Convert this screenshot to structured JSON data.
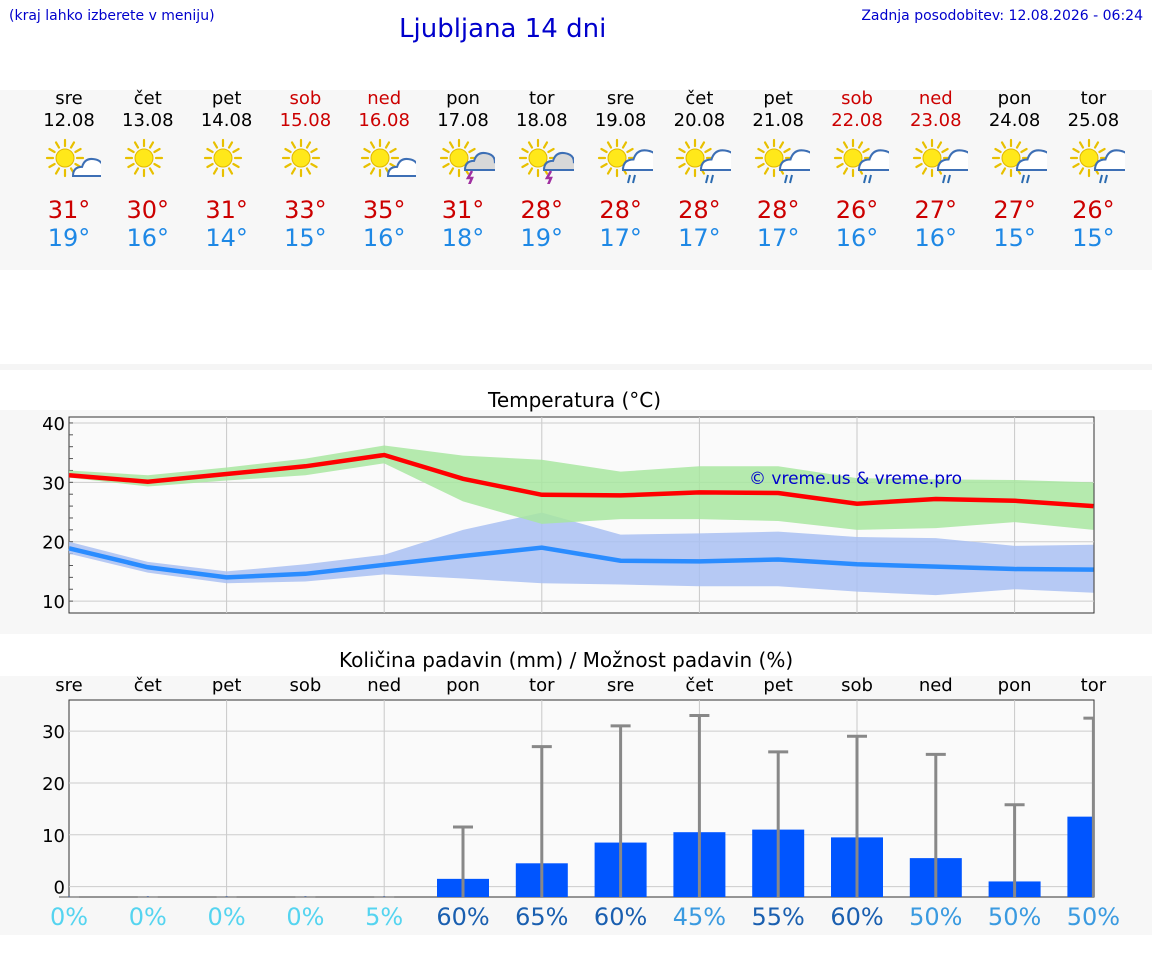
{
  "header": {
    "hint": "(kraj lahko izberete v meniju)",
    "title": "Ljubljana 14 dni",
    "updated_label": "Zadnja posodobitev:",
    "updated_value": "12.08.2026 - 06:24"
  },
  "colors": {
    "weekday": "#000000",
    "weekend": "#cc0000",
    "tmax": "#cc0000",
    "tmin": "#1e88e5",
    "max_band": "#a8e6a0",
    "min_band": "#a9c0f2",
    "max_line": "#ff0000",
    "min_line": "#2a8cff",
    "bar": "#0055ff",
    "whisker": "#888888",
    "pct_low": "#55d4f0",
    "pct_mid": "#3a9ae0",
    "pct_high": "#1a5fb0"
  },
  "days": [
    {
      "name": "sre",
      "date": "12.08",
      "weekend": false,
      "icon": "sun-cloud-icon",
      "tmax": "31°",
      "tmin": "19°"
    },
    {
      "name": "čet",
      "date": "13.08",
      "weekend": false,
      "icon": "sun-icon",
      "tmax": "30°",
      "tmin": "16°"
    },
    {
      "name": "pet",
      "date": "14.08",
      "weekend": false,
      "icon": "sun-icon",
      "tmax": "31°",
      "tmin": "14°"
    },
    {
      "name": "sob",
      "date": "15.08",
      "weekend": true,
      "icon": "sun-icon",
      "tmax": "33°",
      "tmin": "15°"
    },
    {
      "name": "ned",
      "date": "16.08",
      "weekend": true,
      "icon": "sun-cloud-icon",
      "tmax": "35°",
      "tmin": "16°"
    },
    {
      "name": "pon",
      "date": "17.08",
      "weekend": false,
      "icon": "sun-storm-icon",
      "tmax": "31°",
      "tmin": "18°"
    },
    {
      "name": "tor",
      "date": "18.08",
      "weekend": false,
      "icon": "sun-storm-icon",
      "tmax": "28°",
      "tmin": "19°"
    },
    {
      "name": "sre",
      "date": "19.08",
      "weekend": false,
      "icon": "sun-rain-icon",
      "tmax": "28°",
      "tmin": "17°"
    },
    {
      "name": "čet",
      "date": "20.08",
      "weekend": false,
      "icon": "sun-rain-icon",
      "tmax": "28°",
      "tmin": "17°"
    },
    {
      "name": "pet",
      "date": "21.08",
      "weekend": false,
      "icon": "sun-rain-icon",
      "tmax": "28°",
      "tmin": "17°"
    },
    {
      "name": "sob",
      "date": "22.08",
      "weekend": true,
      "icon": "sun-rain-icon",
      "tmax": "26°",
      "tmin": "16°"
    },
    {
      "name": "ned",
      "date": "23.08",
      "weekend": true,
      "icon": "sun-rain-icon",
      "tmax": "27°",
      "tmin": "16°"
    },
    {
      "name": "pon",
      "date": "24.08",
      "weekend": false,
      "icon": "sun-rain-icon",
      "tmax": "27°",
      "tmin": "15°"
    },
    {
      "name": "tor",
      "date": "25.08",
      "weekend": false,
      "icon": "sun-rain-icon",
      "tmax": "26°",
      "tmin": "15°"
    }
  ],
  "chart_data": [
    {
      "type": "line",
      "title": "Temperatura (°C)",
      "watermark": "© vreme.us & vreme.pro",
      "ylim": [
        8,
        41
      ],
      "yticks": [
        10,
        20,
        30,
        40
      ],
      "grid": true,
      "series": [
        {
          "values": [
            31.2,
            30.1,
            31.4,
            32.7,
            34.6,
            30.6,
            27.9,
            27.8,
            28.3,
            28.2,
            26.4,
            27.2,
            26.9,
            26.0
          ],
          "band_low": [
            30.8,
            29.3,
            30.3,
            31.2,
            33.2,
            26.8,
            23.0,
            23.8,
            23.8,
            23.5,
            22.0,
            22.3,
            23.3,
            22.0
          ],
          "band_high": [
            32.0,
            31.2,
            32.5,
            34.0,
            36.2,
            34.5,
            33.8,
            31.8,
            32.7,
            32.7,
            30.7,
            30.5,
            30.4,
            30.0
          ]
        },
        {
          "values": [
            18.9,
            15.7,
            14.0,
            14.6,
            16.1,
            17.6,
            19.0,
            16.8,
            16.7,
            17.0,
            16.2,
            15.8,
            15.4,
            15.3
          ],
          "band_low": [
            18.0,
            14.8,
            13.0,
            13.3,
            14.5,
            13.8,
            13.0,
            12.8,
            12.5,
            12.5,
            11.6,
            11.0,
            12.0,
            11.4
          ],
          "band_high": [
            20.0,
            16.6,
            15.0,
            16.2,
            17.8,
            22.0,
            24.9,
            21.2,
            21.4,
            21.7,
            20.8,
            20.6,
            19.3,
            19.5
          ]
        }
      ]
    },
    {
      "type": "bar",
      "title": "Količina padavin (mm) / Možnost padavin (%)",
      "categories": [
        "sre",
        "čet",
        "pet",
        "sob",
        "ned",
        "pon",
        "tor",
        "sre",
        "čet",
        "pet",
        "sob",
        "ned",
        "pon",
        "tor"
      ],
      "ylim": [
        -2,
        36
      ],
      "yticks": [
        0,
        10,
        20,
        30
      ],
      "grid": true,
      "values": [
        0,
        0,
        0,
        0,
        0,
        1.5,
        4.5,
        8.5,
        10.5,
        11.0,
        9.5,
        5.5,
        1.0,
        13.5
      ],
      "max_values": [
        0,
        0,
        0,
        0,
        0,
        11.5,
        27.0,
        31.0,
        33.0,
        26.0,
        29.0,
        25.5,
        15.8,
        32.5
      ],
      "probability": [
        "0%",
        "0%",
        "0%",
        "0%",
        "5%",
        "60%",
        "65%",
        "60%",
        "45%",
        "55%",
        "60%",
        "50%",
        "50%",
        "50%"
      ],
      "probability_values": [
        0,
        0,
        0,
        0,
        5,
        60,
        65,
        60,
        45,
        55,
        60,
        50,
        50,
        50
      ]
    }
  ]
}
